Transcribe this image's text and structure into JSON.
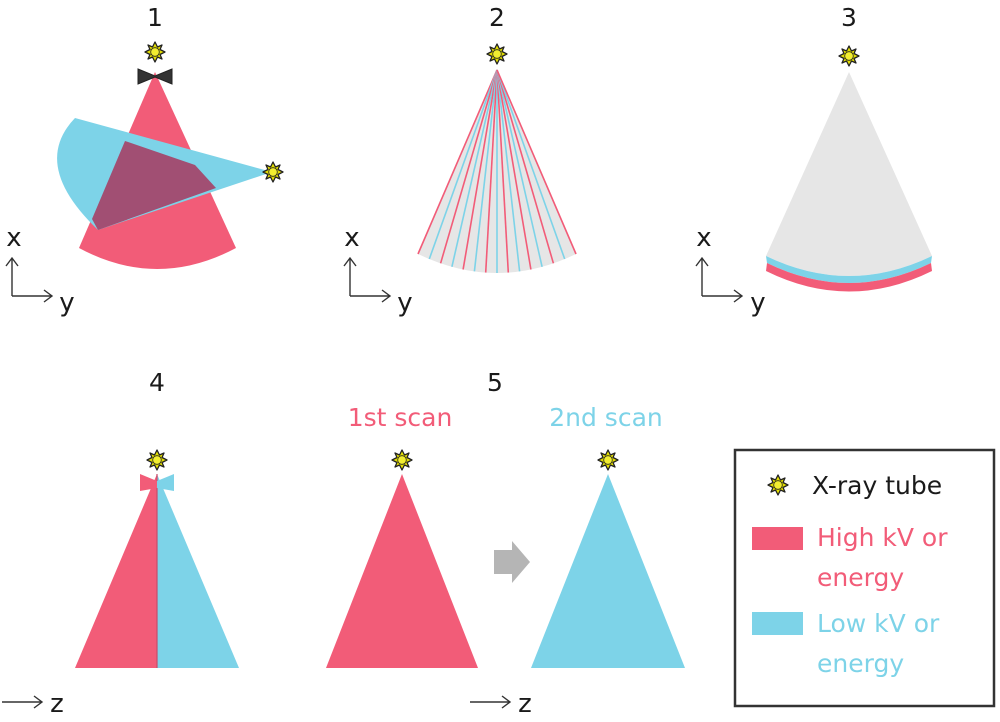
{
  "colors": {
    "high": "#F25C78",
    "low": "#7DD3E8",
    "overlap": "#A14F73",
    "gray": "#E6E6E6",
    "tube_fill": "#E5E000",
    "arrow_gray": "#B5B5B5",
    "legend_border": "#333333"
  },
  "panels": {
    "p1": {
      "label": "1",
      "axis_v": "x",
      "axis_h": "y"
    },
    "p2": {
      "label": "2",
      "axis_v": "x",
      "axis_h": "y"
    },
    "p3": {
      "label": "3",
      "axis_v": "x",
      "axis_h": "y"
    },
    "p4": {
      "label": "4",
      "axis_h": "z"
    },
    "p5": {
      "label": "5",
      "scan1": "1st scan",
      "scan2": "2nd scan",
      "axis_h": "z"
    }
  },
  "legend": {
    "tube": "X-ray tube",
    "high_line1": "High kV or",
    "high_line2": "energy",
    "low_line1": "Low kV or",
    "low_line2": "energy"
  },
  "icons": [
    "x-ray-tube-icon",
    "filter-icon",
    "arrow-icon"
  ]
}
